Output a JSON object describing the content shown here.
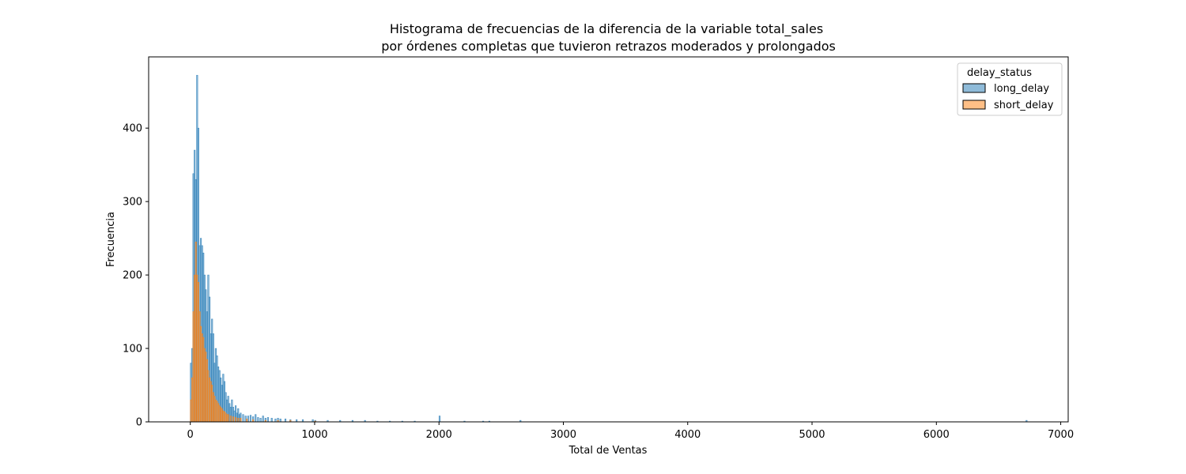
{
  "chart_data": {
    "type": "histogram",
    "title_lines": [
      "Histograma de frecuencias de la diferencia de la variable total_sales",
      " por órdenes completas que tuvieron retrazos moderados y prolongados"
    ],
    "xlabel": "Total de Ventas",
    "ylabel": "Frecuencia",
    "xlim": [
      -335,
      7060
    ],
    "ylim": [
      0,
      497
    ],
    "xticks": [
      0,
      1000,
      2000,
      3000,
      4000,
      5000,
      6000,
      7000
    ],
    "yticks": [
      0,
      100,
      200,
      300,
      400
    ],
    "grid": false,
    "legend": {
      "title": "delay_status",
      "position": "top-right"
    },
    "bin_width": 10,
    "colors": {
      "long_delay": "#1f77b4",
      "short_delay": "#ff7f0e"
    },
    "series": [
      {
        "name": "long_delay",
        "bins": [
          [
            0,
            80
          ],
          [
            10,
            100
          ],
          [
            20,
            338
          ],
          [
            30,
            370
          ],
          [
            40,
            330
          ],
          [
            50,
            472
          ],
          [
            60,
            400
          ],
          [
            70,
            240
          ],
          [
            80,
            250
          ],
          [
            90,
            240
          ],
          [
            100,
            230
          ],
          [
            110,
            200
          ],
          [
            120,
            180
          ],
          [
            130,
            150
          ],
          [
            140,
            200
          ],
          [
            150,
            170
          ],
          [
            160,
            120
          ],
          [
            170,
            140
          ],
          [
            180,
            120
          ],
          [
            190,
            80
          ],
          [
            200,
            100
          ],
          [
            210,
            90
          ],
          [
            220,
            75
          ],
          [
            230,
            70
          ],
          [
            240,
            60
          ],
          [
            250,
            50
          ],
          [
            260,
            65
          ],
          [
            270,
            55
          ],
          [
            280,
            40
          ],
          [
            290,
            30
          ],
          [
            300,
            35
          ],
          [
            310,
            25
          ],
          [
            320,
            20
          ],
          [
            330,
            30
          ],
          [
            340,
            20
          ],
          [
            350,
            15
          ],
          [
            360,
            22
          ],
          [
            370,
            12
          ],
          [
            380,
            18
          ],
          [
            390,
            10
          ],
          [
            400,
            12
          ],
          [
            420,
            10
          ],
          [
            440,
            8
          ],
          [
            460,
            8
          ],
          [
            480,
            9
          ],
          [
            500,
            7
          ],
          [
            520,
            10
          ],
          [
            540,
            6
          ],
          [
            560,
            5
          ],
          [
            580,
            8
          ],
          [
            600,
            5
          ],
          [
            620,
            6
          ],
          [
            650,
            5
          ],
          [
            680,
            4
          ],
          [
            700,
            5
          ],
          [
            720,
            4
          ],
          [
            760,
            4
          ],
          [
            800,
            3
          ],
          [
            850,
            3
          ],
          [
            900,
            3
          ],
          [
            980,
            3
          ],
          [
            1000,
            2
          ],
          [
            1100,
            2
          ],
          [
            1200,
            2
          ],
          [
            1300,
            2
          ],
          [
            1400,
            2
          ],
          [
            1500,
            1
          ],
          [
            1600,
            1
          ],
          [
            1700,
            1
          ],
          [
            1800,
            1
          ],
          [
            2000,
            8
          ],
          [
            2200,
            1
          ],
          [
            2350,
            1
          ],
          [
            2400,
            1
          ],
          [
            2650,
            2
          ],
          [
            6720,
            2
          ]
        ]
      },
      {
        "name": "short_delay",
        "bins": [
          [
            0,
            30
          ],
          [
            10,
            60
          ],
          [
            20,
            150
          ],
          [
            30,
            200
          ],
          [
            40,
            245
          ],
          [
            50,
            200
          ],
          [
            60,
            190
          ],
          [
            70,
            150
          ],
          [
            80,
            130
          ],
          [
            90,
            120
          ],
          [
            100,
            115
          ],
          [
            110,
            100
          ],
          [
            120,
            95
          ],
          [
            130,
            85
          ],
          [
            140,
            70
          ],
          [
            150,
            60
          ],
          [
            160,
            55
          ],
          [
            170,
            50
          ],
          [
            180,
            40
          ],
          [
            190,
            35
          ],
          [
            200,
            30
          ],
          [
            210,
            28
          ],
          [
            220,
            25
          ],
          [
            230,
            22
          ],
          [
            240,
            20
          ],
          [
            250,
            18
          ],
          [
            260,
            15
          ],
          [
            270,
            14
          ],
          [
            280,
            12
          ],
          [
            290,
            10
          ],
          [
            300,
            10
          ],
          [
            320,
            8
          ],
          [
            340,
            7
          ],
          [
            360,
            6
          ],
          [
            380,
            5
          ],
          [
            400,
            5
          ],
          [
            450,
            4
          ],
          [
            500,
            3
          ],
          [
            600,
            2
          ],
          [
            700,
            2
          ],
          [
            800,
            2
          ],
          [
            1000,
            1
          ]
        ]
      }
    ]
  }
}
